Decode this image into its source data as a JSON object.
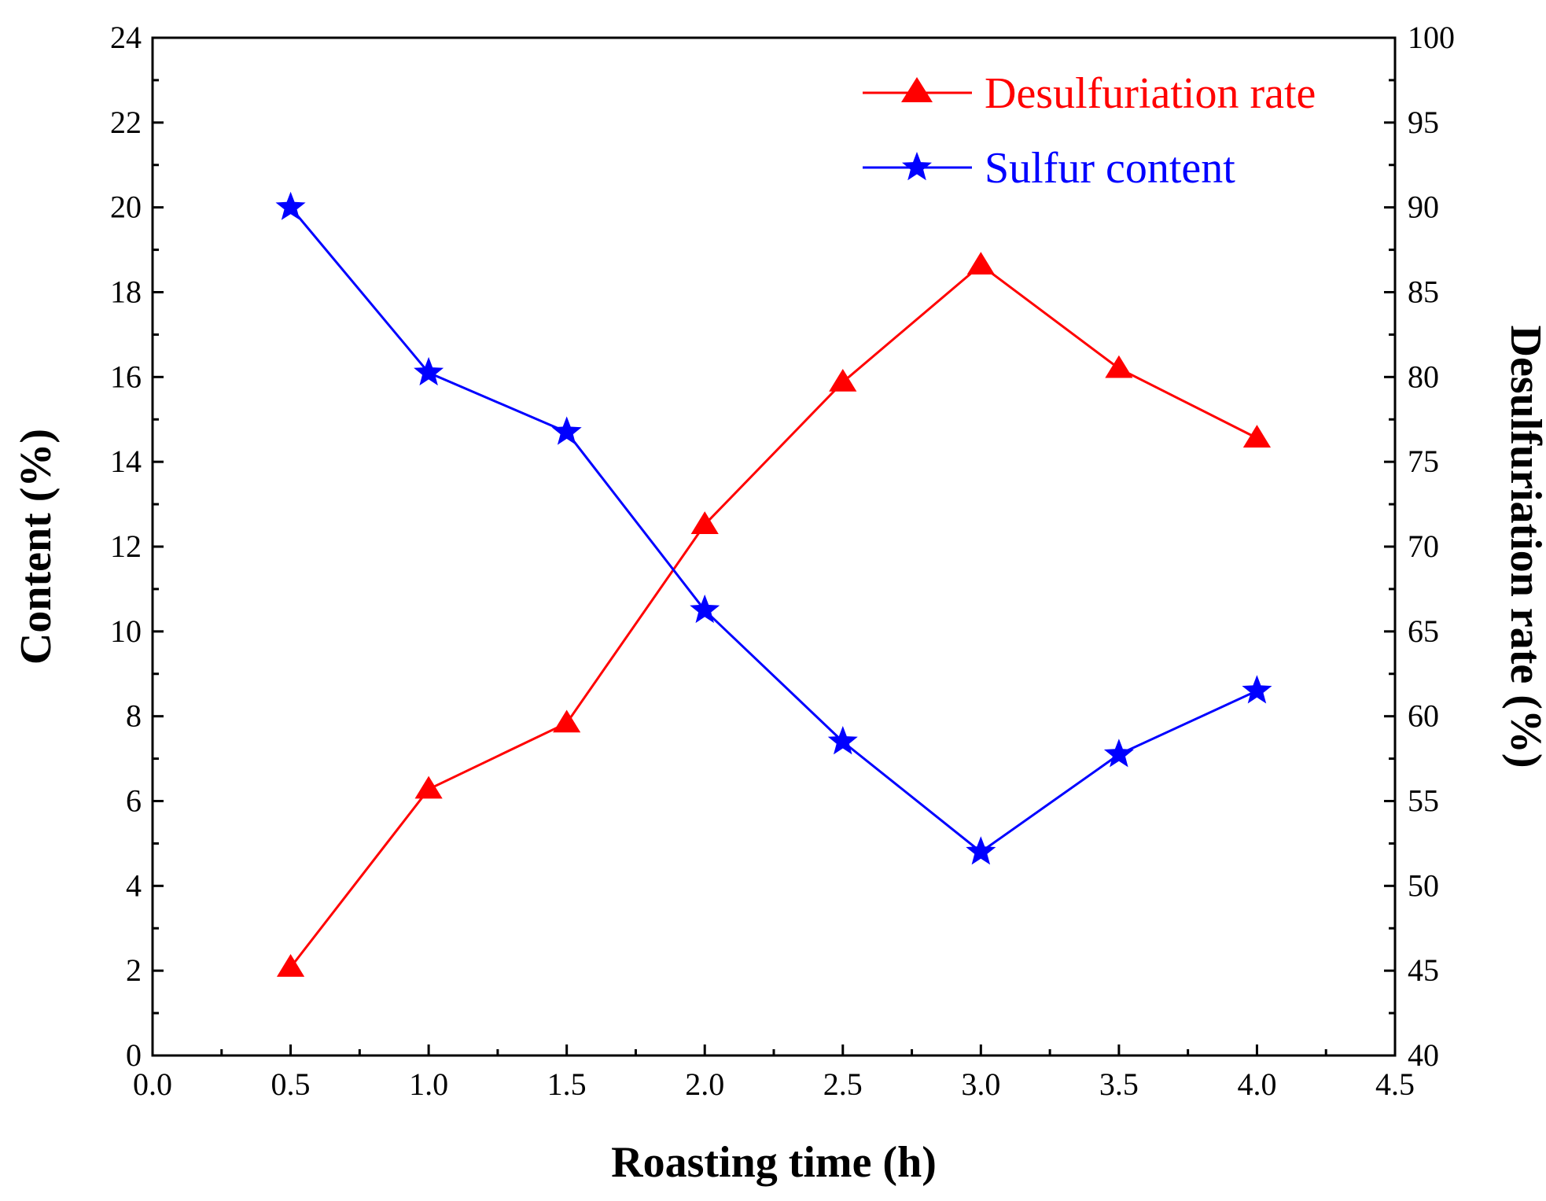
{
  "chart_data": {
    "type": "line",
    "title": "",
    "xlabel": "Roasting time (h)",
    "ylabel_left": "Content (%)",
    "ylabel_right": "Desulfuriation rate (%)",
    "xlim": [
      0.0,
      4.5
    ],
    "ylim_left": [
      0,
      24
    ],
    "ylim_right": [
      40,
      100
    ],
    "x_ticks": [
      "0.0",
      "0.5",
      "1.0",
      "1.5",
      "2.0",
      "2.5",
      "3.0",
      "3.5",
      "4.0",
      "4.5"
    ],
    "y_left_ticks": [
      "0",
      "2",
      "4",
      "6",
      "8",
      "10",
      "12",
      "14",
      "16",
      "18",
      "20",
      "22",
      "24"
    ],
    "y_right_ticks": [
      "40",
      "45",
      "50",
      "55",
      "60",
      "65",
      "70",
      "75",
      "80",
      "85",
      "90",
      "95",
      "100"
    ],
    "grid": false,
    "legend_position": "top-right",
    "x": [
      0.5,
      1.0,
      1.5,
      2.0,
      2.5,
      3.0,
      3.5,
      4.0
    ],
    "series": [
      {
        "name": "Desulfuriation rate",
        "axis": "right",
        "marker": "triangle",
        "color": "#ff0000",
        "values": [
          45.2,
          55.7,
          59.6,
          71.3,
          79.7,
          86.6,
          80.5,
          76.4
        ]
      },
      {
        "name": "Sulfur content",
        "axis": "left",
        "marker": "star",
        "color": "#0000ff",
        "values": [
          20.0,
          16.1,
          14.7,
          10.5,
          7.4,
          4.8,
          7.1,
          8.6
        ]
      }
    ]
  }
}
